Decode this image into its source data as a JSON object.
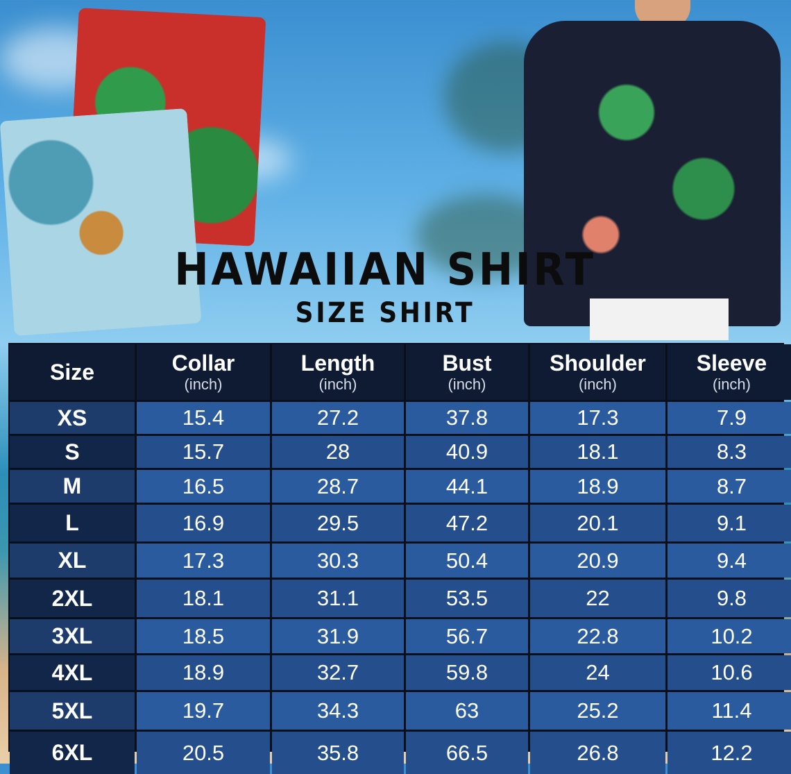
{
  "title": "HAWAIIAN SHIRT",
  "subtitle": "SIZE SHIRT",
  "colors": {
    "header": "#0f1b33",
    "row_light": "#2b5b9f",
    "row_dark": "#244f8c",
    "size_col": "#12264a"
  },
  "table": {
    "columns": [
      {
        "name": "Size",
        "unit": ""
      },
      {
        "name": "Collar",
        "unit": "(inch)"
      },
      {
        "name": "Length",
        "unit": "(inch)"
      },
      {
        "name": "Bust",
        "unit": "(inch)"
      },
      {
        "name": "Shoulder",
        "unit": "(inch)"
      },
      {
        "name": "Sleeve",
        "unit": "(inch)"
      }
    ],
    "rows": [
      [
        "XS",
        "15.4",
        "27.2",
        "37.8",
        "17.3",
        "7.9"
      ],
      [
        "S",
        "15.7",
        "28",
        "40.9",
        "18.1",
        "8.3"
      ],
      [
        "M",
        "16.5",
        "28.7",
        "44.1",
        "18.9",
        "8.7"
      ],
      [
        "L",
        "16.9",
        "29.5",
        "47.2",
        "20.1",
        "9.1"
      ],
      [
        "XL",
        "17.3",
        "30.3",
        "50.4",
        "20.9",
        "9.4"
      ],
      [
        "2XL",
        "18.1",
        "31.1",
        "53.5",
        "22",
        "9.8"
      ],
      [
        "3XL",
        "18.5",
        "31.9",
        "56.7",
        "22.8",
        "10.2"
      ],
      [
        "4XL",
        "18.9",
        "32.7",
        "59.8",
        "24",
        "10.6"
      ],
      [
        "5XL",
        "19.7",
        "34.3",
        "63",
        "25.2",
        "11.4"
      ],
      [
        "6XL",
        "20.5",
        "35.8",
        "66.5",
        "26.8",
        "12.2"
      ]
    ]
  }
}
